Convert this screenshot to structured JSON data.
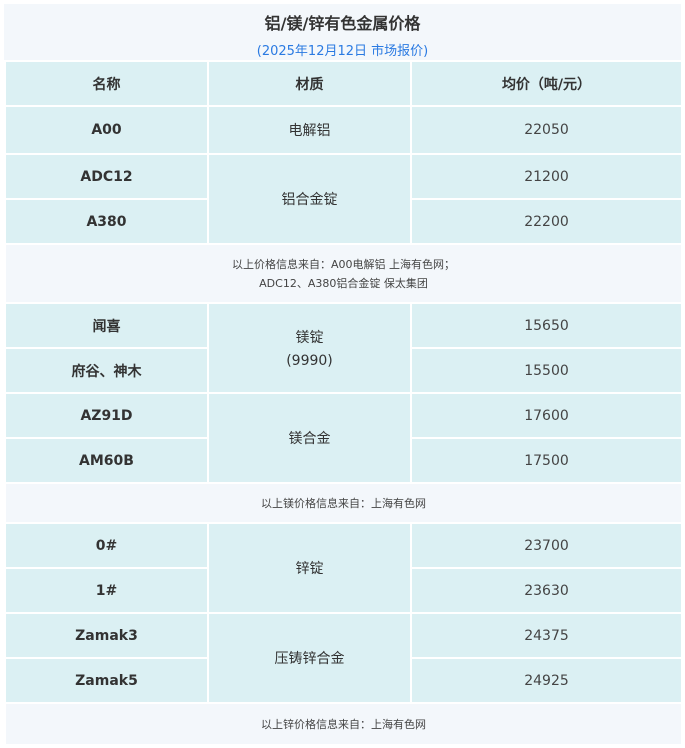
{
  "title": "铝/镁/锌有色金属价格",
  "subtitle": "(2025年12月12日 市场报价)",
  "headers": [
    "名称",
    "材质",
    "均价（吨/元）"
  ],
  "aluminum": {
    "rows": [
      {
        "name": "A00",
        "price": "22050"
      },
      {
        "name": "ADC12",
        "price": "21200"
      },
      {
        "name": "A380",
        "price": "22200"
      }
    ],
    "materials": [
      "电解铝",
      "铝合金锭"
    ],
    "note_line1": "以上价格信息来自：A00电解铝 上海有色网；",
    "note_line2": "ADC12、A380铝合金锭 保太集团"
  },
  "magnesium": {
    "rows": [
      {
        "name": "闻喜",
        "price": "15650"
      },
      {
        "name": "府谷、神木",
        "price": "15500"
      },
      {
        "name": "AZ91D",
        "price": "17600"
      },
      {
        "name": "AM60B",
        "price": "17500"
      }
    ],
    "material1_line1": "镁锭",
    "material1_line2": "(9990)",
    "material2": "镁合金",
    "note": "以上镁价格信息来自：上海有色网"
  },
  "zinc": {
    "rows": [
      {
        "name": "0#",
        "price": "23700"
      },
      {
        "name": "1#",
        "price": "23630"
      },
      {
        "name": "Zamak3",
        "price": "24375"
      },
      {
        "name": "Zamak5",
        "price": "24925"
      }
    ],
    "materials": [
      "锌锭",
      "压铸锌合金"
    ],
    "note": "以上锌价格信息来自：上海有色网"
  },
  "colors": {
    "cell_bg": "#dbf0f3",
    "note_bg": "#f3f7fb",
    "subtitle": "#2a7ae2"
  }
}
